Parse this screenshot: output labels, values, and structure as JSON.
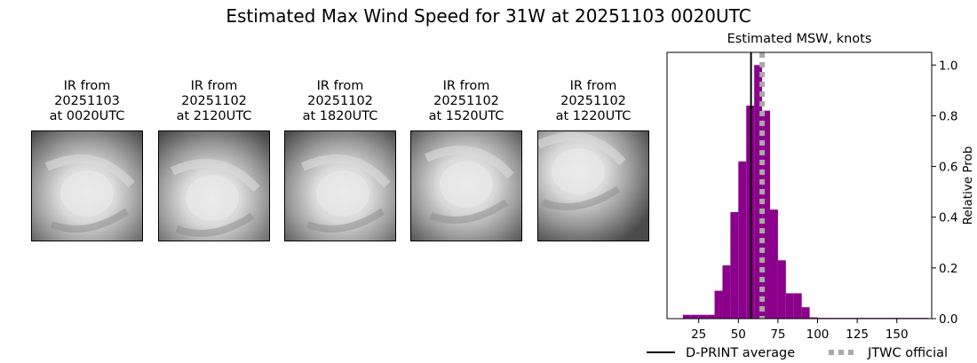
{
  "page": {
    "title": "Estimated Max Wind Speed for 31W at 20251103 0020UTC"
  },
  "panels": [
    {
      "label": "IR from\n20251103\nat 0020UTC",
      "icon": "satellite-ir-image"
    },
    {
      "label": "IR from\n20251102\nat 2120UTC",
      "icon": "satellite-ir-image"
    },
    {
      "label": "IR from\n20251102\nat 1820UTC",
      "icon": "satellite-ir-image"
    },
    {
      "label": "IR from\n20251102\nat 1520UTC",
      "icon": "satellite-ir-image"
    },
    {
      "label": "IR from\n20251102\nat 1220UTC",
      "icon": "satellite-ir-image"
    }
  ],
  "chart_data": {
    "type": "bar",
    "title": "Estimated MSW, knots",
    "xlabel": "",
    "ylabel": "Relative Prob",
    "xlim": [
      5,
      172
    ],
    "ylim": [
      0,
      1.05
    ],
    "xticks": [
      25,
      50,
      75,
      100,
      125,
      150
    ],
    "yticks": [
      0.0,
      0.2,
      0.4,
      0.6,
      0.8,
      1.0
    ],
    "yaxis_position": "right",
    "bin_width": 5,
    "bins": [
      {
        "x0": 15,
        "x1": 20,
        "value": 0.015
      },
      {
        "x0": 20,
        "x1": 25,
        "value": 0.015
      },
      {
        "x0": 25,
        "x1": 30,
        "value": 0.015
      },
      {
        "x0": 30,
        "x1": 35,
        "value": 0.015
      },
      {
        "x0": 35,
        "x1": 40,
        "value": 0.11
      },
      {
        "x0": 40,
        "x1": 45,
        "value": 0.21
      },
      {
        "x0": 45,
        "x1": 50,
        "value": 0.42
      },
      {
        "x0": 50,
        "x1": 55,
        "value": 0.62
      },
      {
        "x0": 55,
        "x1": 60,
        "value": 0.84
      },
      {
        "x0": 60,
        "x1": 65,
        "value": 1.0
      },
      {
        "x0": 65,
        "x1": 70,
        "value": 0.82
      },
      {
        "x0": 70,
        "x1": 75,
        "value": 0.43
      },
      {
        "x0": 75,
        "x1": 80,
        "value": 0.23
      },
      {
        "x0": 80,
        "x1": 85,
        "value": 0.1
      },
      {
        "x0": 85,
        "x1": 90,
        "value": 0.1
      },
      {
        "x0": 90,
        "x1": 95,
        "value": 0.045
      },
      {
        "x0": 95,
        "x1": 100,
        "value": 0.005
      },
      {
        "x0": 100,
        "x1": 170,
        "value": 0.003
      }
    ],
    "bar_color": "#8b008b",
    "reference_lines": [
      {
        "name": "D-PRINT average",
        "x": 58,
        "color": "#000000",
        "style": "solid"
      },
      {
        "name": "JTWC official",
        "x": 65,
        "color": "#a9a9a9",
        "style": "dotted"
      }
    ],
    "legend": {
      "position": "bottom",
      "items": [
        "D-PRINT average",
        "JTWC official"
      ]
    },
    "grid": false
  }
}
